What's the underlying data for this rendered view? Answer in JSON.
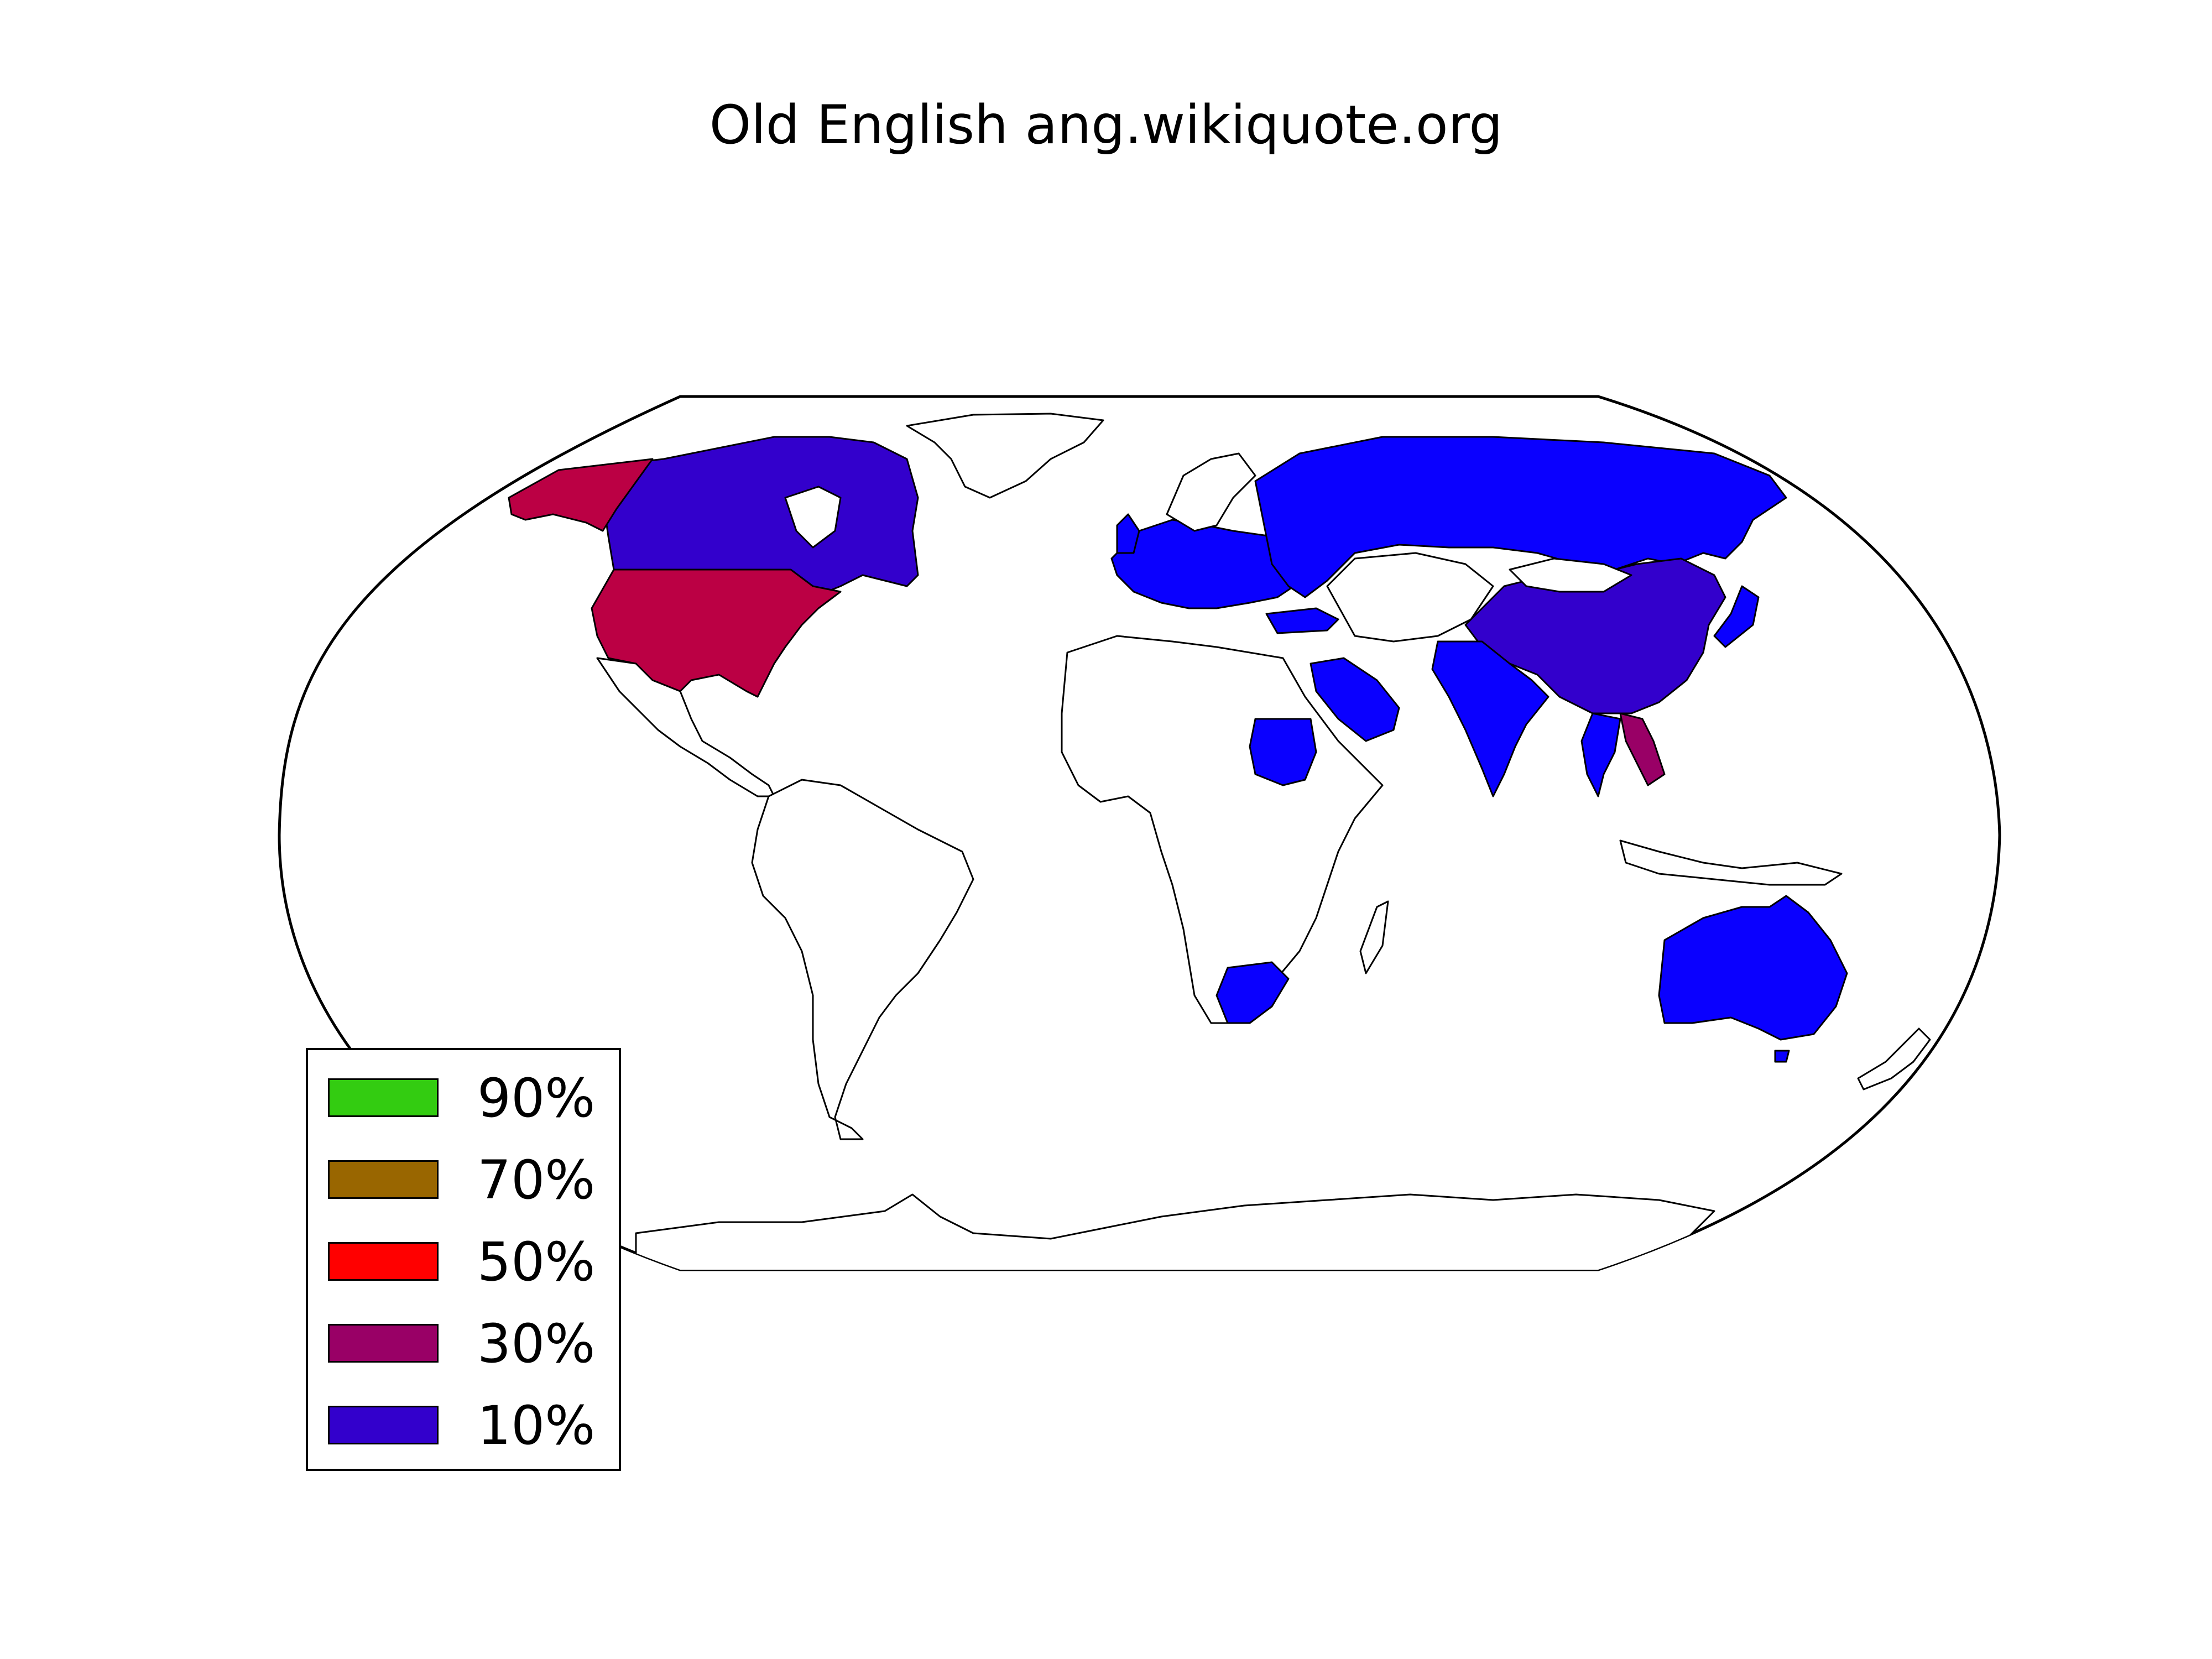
{
  "title": "Old English ang.wikiquote.org",
  "colors": {
    "ocean": "#ffffff",
    "land": "#ffffff",
    "border": "#000000",
    "tier_10": "#3300cc",
    "tier_10_bright": "#0a00ff",
    "tier_30": "#990066",
    "tier_50": "#ff0000",
    "tier_70": "#996600",
    "tier_90": "#33cc11",
    "usa_alaska": "#bb0044"
  },
  "legend": [
    {
      "label": "90%",
      "color": "#33cc11"
    },
    {
      "label": "70%",
      "color": "#996600"
    },
    {
      "label": "50%",
      "color": "#ff0000"
    },
    {
      "label": "30%",
      "color": "#990066"
    },
    {
      "label": "10%",
      "color": "#3300cc"
    }
  ],
  "highlighted_regions": [
    {
      "name": "United States",
      "tier": "30%-50%"
    },
    {
      "name": "Alaska",
      "tier": "30%-50%"
    },
    {
      "name": "Canada",
      "tier": "10%"
    },
    {
      "name": "Russia",
      "tier": "10%"
    },
    {
      "name": "China",
      "tier": "10%"
    },
    {
      "name": "India",
      "tier": "10%"
    },
    {
      "name": "Australia",
      "tier": "10%"
    },
    {
      "name": "Saudi Arabia",
      "tier": "10%"
    },
    {
      "name": "Sudan",
      "tier": "10%"
    },
    {
      "name": "South Africa",
      "tier": "10%"
    },
    {
      "name": "Turkey",
      "tier": "10%"
    },
    {
      "name": "Vietnam",
      "tier": "30%"
    },
    {
      "name": "Thailand",
      "tier": "10%"
    },
    {
      "name": "Japan",
      "tier": "10%"
    },
    {
      "name": "Europe (multiple countries)",
      "tier": "10%"
    }
  ]
}
